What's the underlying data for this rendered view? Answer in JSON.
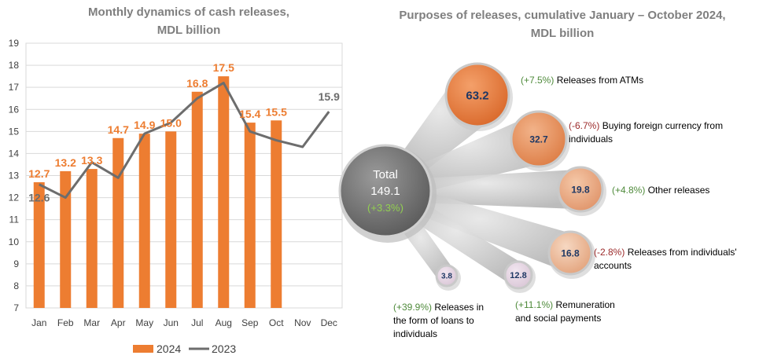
{
  "left_title_line1": "Monthly dynamics of cash releases,",
  "left_title_line2": "MDL billion",
  "right_title_line1": "Purposes of releases, cumulative January – October 2024,",
  "right_title_line2": "MDL billion",
  "chart_data": [
    {
      "type": "bar",
      "title": "Monthly dynamics of cash releases, MDL billion",
      "categories": [
        "Jan",
        "Feb",
        "Mar",
        "Apr",
        "May",
        "Jun",
        "Jul",
        "Aug",
        "Sep",
        "Oct",
        "Nov",
        "Dec"
      ],
      "ylim": [
        7,
        19
      ],
      "yticks": [
        7,
        8,
        9,
        10,
        11,
        12,
        13,
        14,
        15,
        16,
        17,
        18,
        19
      ],
      "grid": true,
      "legend_position": "bottom",
      "series": [
        {
          "name": "2024",
          "type": "bar",
          "color": "#ed7d31",
          "values": [
            12.7,
            13.2,
            13.3,
            14.7,
            14.9,
            15.0,
            16.8,
            17.5,
            15.4,
            15.5,
            null,
            null
          ],
          "labels": [
            "12.7",
            "13.2",
            "13.3",
            "14.7",
            "14.9",
            "15.0",
            "16.8",
            "17.5",
            "15.4",
            "15.5",
            "",
            ""
          ]
        },
        {
          "name": "2023",
          "type": "line",
          "color": "#6d6d6d",
          "values": [
            12.6,
            12.0,
            13.6,
            12.9,
            14.9,
            15.4,
            16.5,
            17.2,
            15.0,
            14.6,
            14.3,
            15.9
          ],
          "labels": [
            "12.6",
            "",
            "",
            "",
            "",
            "",
            "",
            "",
            "",
            "",
            "",
            "15.9"
          ]
        }
      ]
    },
    {
      "type": "bubble",
      "title": "Purposes of releases, cumulative January – October 2024, MDL billion",
      "total": {
        "label": "Total",
        "value": "149.1",
        "change": "(+3.3%)"
      },
      "items": [
        {
          "value": "63.2",
          "change": "(+7.5%)",
          "label": "Releases from ATMs",
          "trend": "up"
        },
        {
          "value": "32.7",
          "change": "(-6.7%)",
          "label": "Buying foreign currency from individuals",
          "trend": "down"
        },
        {
          "value": "19.8",
          "change": "(+4.8%)",
          "label": "Other releases",
          "trend": "up"
        },
        {
          "value": "16.8",
          "change": "(-2.8%)",
          "label": "Releases from individuals' accounts",
          "trend": "down"
        },
        {
          "value": "12.8",
          "change": "(+11.1%)",
          "label": "Remuneration and social payments",
          "trend": "up"
        },
        {
          "value": "3.8",
          "change": "(+39.9%)",
          "label": "Releases in the form of loans to individuals",
          "trend": "up"
        }
      ]
    }
  ],
  "colors": {
    "bar": "#ed7d31",
    "line": "#6d6d6d",
    "pos": "#4e8a3a",
    "neg": "#9c2a2a",
    "title": "#7f7f7f"
  }
}
